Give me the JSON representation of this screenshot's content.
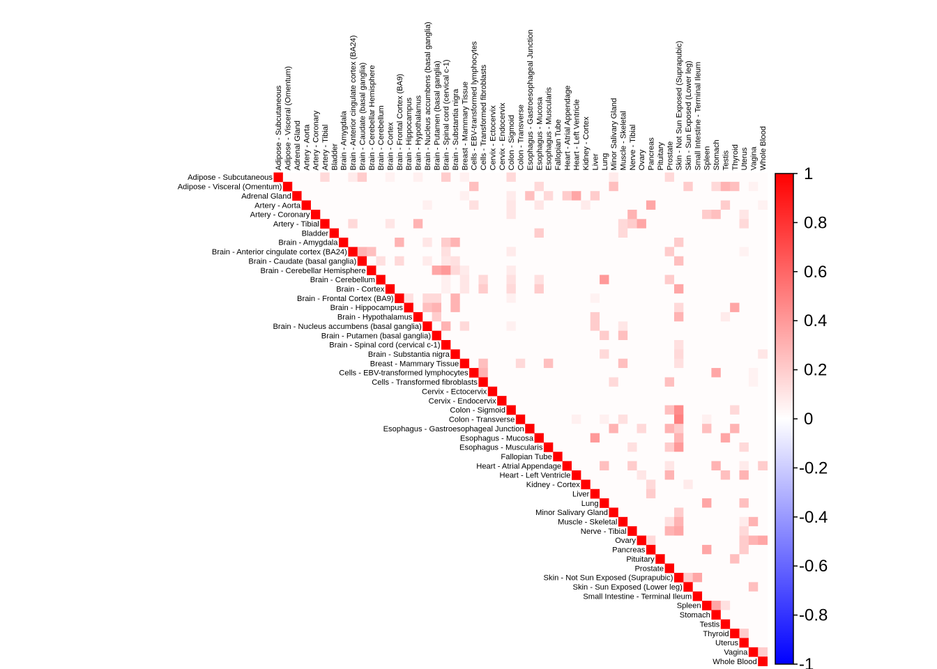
{
  "chart_data": {
    "type": "heatmap",
    "layout": "upper-triangular correlation matrix",
    "title": "",
    "tissues": [
      "Adipose - Subcutaneous",
      "Adipose - Visceral (Omentum)",
      "Adrenal Gland",
      "Artery - Aorta",
      "Artery - Coronary",
      "Artery - Tibial",
      "Bladder",
      "Brain - Amygdala",
      "Brain - Anterior cingulate cortex (BA24)",
      "Brain - Caudate (basal ganglia)",
      "Brain - Cerebellar Hemisphere",
      "Brain - Cerebellum",
      "Brain - Cortex",
      "Brain - Frontal Cortex (BA9)",
      "Brain - Hippocampus",
      "Brain - Hypothalamus",
      "Brain - Nucleus accumbens (basal ganglia)",
      "Brain - Putamen (basal ganglia)",
      "Brain - Spinal cord (cervical c-1)",
      "Brain - Substantia nigra",
      "Breast - Mammary Tissue",
      "Cells - EBV-transformed lymphocytes",
      "Cells - Transformed fibroblasts",
      "Cervix - Ectocervix",
      "Cervix - Endocervix",
      "Colon - Sigmoid",
      "Colon - Transverse",
      "Esophagus - Gastroesophageal Junction",
      "Esophagus - Mucosa",
      "Esophagus - Muscularis",
      "Fallopian Tube",
      "Heart - Atrial Appendage",
      "Heart - Left Ventricle",
      "Kidney - Cortex",
      "Liver",
      "Lung",
      "Minor Salivary Gland",
      "Muscle - Skeletal",
      "Nerve - Tibial",
      "Ovary",
      "Pancreas",
      "Pituitary",
      "Prostate",
      "Skin - Not Sun Exposed (Suprapubic)",
      "Skin - Sun Exposed (Lower leg)",
      "Small Intestine - Terminal Ileum",
      "Spleen",
      "Stomach",
      "Testis",
      "Thyroid",
      "Uterus",
      "Vagina",
      "Whole Blood"
    ],
    "diagonal_value": 1,
    "background_value": 0.01,
    "highlighted_cells": [
      [
        0,
        5,
        0.15
      ],
      [
        0,
        8,
        0.08
      ],
      [
        0,
        9,
        0.2
      ],
      [
        0,
        12,
        0.05
      ],
      [
        0,
        15,
        0.06
      ],
      [
        0,
        18,
        0.2
      ],
      [
        0,
        20,
        0.06
      ],
      [
        0,
        25,
        0.15
      ],
      [
        0,
        42,
        0.15
      ],
      [
        0,
        36,
        0.08
      ],
      [
        1,
        21,
        0.25
      ],
      [
        1,
        28,
        0.15
      ],
      [
        1,
        36,
        0.25
      ],
      [
        1,
        44,
        0.2
      ],
      [
        1,
        47,
        0.15
      ],
      [
        1,
        48,
        0.3
      ],
      [
        1,
        49,
        0.25
      ],
      [
        1,
        51,
        0.05
      ],
      [
        2,
        25,
        0.08
      ],
      [
        2,
        27,
        0.25
      ],
      [
        2,
        29,
        0.15
      ],
      [
        2,
        31,
        0.2
      ],
      [
        2,
        32,
        0.35
      ],
      [
        2,
        34,
        0.2
      ],
      [
        2,
        20,
        0.06
      ],
      [
        3,
        16,
        0.06
      ],
      [
        3,
        21,
        0.12
      ],
      [
        3,
        25,
        0.1
      ],
      [
        3,
        28,
        0.1
      ],
      [
        3,
        33,
        0.08
      ],
      [
        3,
        40,
        0.35
      ],
      [
        3,
        48,
        0.2
      ],
      [
        3,
        52,
        0.05
      ],
      [
        4,
        25,
        0.1
      ],
      [
        4,
        38,
        0.3
      ],
      [
        4,
        46,
        0.2
      ],
      [
        4,
        47,
        0.25
      ],
      [
        4,
        50,
        0.1
      ],
      [
        5,
        8,
        0.15
      ],
      [
        5,
        12,
        0.1
      ],
      [
        5,
        15,
        0.3
      ],
      [
        5,
        37,
        0.15
      ],
      [
        5,
        38,
        0.2
      ],
      [
        5,
        39,
        0.35
      ],
      [
        5,
        50,
        0.15
      ],
      [
        6,
        28,
        0.2
      ],
      [
        6,
        37,
        0.15
      ],
      [
        7,
        13,
        0.3
      ],
      [
        7,
        16,
        0.1
      ],
      [
        7,
        18,
        0.2
      ],
      [
        7,
        19,
        0.3
      ],
      [
        7,
        43,
        0.2
      ],
      [
        8,
        9,
        0.3
      ],
      [
        8,
        10,
        0.25
      ],
      [
        8,
        18,
        0.12
      ],
      [
        8,
        25,
        0.08
      ],
      [
        8,
        42,
        0.2
      ],
      [
        8,
        50,
        0.05
      ],
      [
        9,
        11,
        0.12
      ],
      [
        9,
        13,
        0.15
      ],
      [
        9,
        16,
        0.08
      ],
      [
        9,
        18,
        0.1
      ],
      [
        9,
        19,
        0.12
      ],
      [
        9,
        43,
        0.25
      ],
      [
        10,
        17,
        0.35
      ],
      [
        10,
        18,
        0.4
      ],
      [
        10,
        19,
        0.15
      ],
      [
        10,
        20,
        0.08
      ],
      [
        10,
        25,
        0.08
      ],
      [
        11,
        18,
        0.06
      ],
      [
        11,
        20,
        0.1
      ],
      [
        11,
        22,
        0.15
      ],
      [
        11,
        25,
        0.12
      ],
      [
        11,
        28,
        0.12
      ],
      [
        11,
        35,
        0.4
      ],
      [
        11,
        42,
        0.2
      ],
      [
        12,
        18,
        0.06
      ],
      [
        12,
        20,
        0.1
      ],
      [
        12,
        22,
        0.2
      ],
      [
        12,
        25,
        0.15
      ],
      [
        12,
        28,
        0.2
      ],
      [
        12,
        43,
        0.35
      ],
      [
        13,
        14,
        0.12
      ],
      [
        13,
        16,
        0.15
      ],
      [
        13,
        17,
        0.15
      ],
      [
        13,
        19,
        0.3
      ],
      [
        13,
        25,
        0.06
      ],
      [
        13,
        34,
        0.05
      ],
      [
        14,
        16,
        0.25
      ],
      [
        14,
        17,
        0.3
      ],
      [
        14,
        19,
        0.3
      ],
      [
        14,
        43,
        0.15
      ],
      [
        14,
        49,
        0.35
      ],
      [
        15,
        17,
        0.2
      ],
      [
        15,
        34,
        0.2
      ],
      [
        15,
        43,
        0.3
      ],
      [
        15,
        48,
        0.08
      ],
      [
        16,
        18,
        0.3
      ],
      [
        16,
        20,
        0.15
      ],
      [
        16,
        25,
        0.06
      ],
      [
        16,
        34,
        0.2
      ],
      [
        16,
        37,
        0.1
      ],
      [
        17,
        35,
        0.2
      ],
      [
        17,
        37,
        0.25
      ],
      [
        18,
        43,
        0.12
      ],
      [
        19,
        35,
        0.15
      ],
      [
        19,
        43,
        0.15
      ],
      [
        19,
        52,
        0.1
      ],
      [
        20,
        22,
        0.25
      ],
      [
        20,
        26,
        0.15
      ],
      [
        20,
        29,
        0.25
      ],
      [
        20,
        37,
        0.25
      ],
      [
        20,
        43,
        0.12
      ],
      [
        21,
        22,
        0.3
      ],
      [
        21,
        47,
        0.35
      ],
      [
        21,
        51,
        0.05
      ],
      [
        22,
        36,
        0.15
      ],
      [
        22,
        42,
        0.25
      ],
      [
        22,
        51,
        0.05
      ],
      [
        25,
        42,
        0.25
      ],
      [
        25,
        43,
        0.45
      ],
      [
        25,
        49,
        0.15
      ],
      [
        26,
        32,
        0.06
      ],
      [
        26,
        35,
        0.06
      ],
      [
        26,
        37,
        0.12
      ],
      [
        26,
        43,
        0.5
      ],
      [
        26,
        46,
        0.06
      ],
      [
        27,
        36,
        0.3
      ],
      [
        27,
        39,
        0.15
      ],
      [
        27,
        42,
        0.3
      ],
      [
        27,
        43,
        0.2
      ],
      [
        27,
        46,
        0.25
      ],
      [
        27,
        49,
        0.3
      ],
      [
        28,
        34,
        0.4
      ],
      [
        28,
        43,
        0.3
      ],
      [
        28,
        48,
        0.35
      ],
      [
        29,
        38,
        0.12
      ],
      [
        29,
        42,
        0.2
      ],
      [
        29,
        43,
        0.4
      ],
      [
        29,
        50,
        0.15
      ],
      [
        31,
        35,
        0.25
      ],
      [
        31,
        38,
        0.2
      ],
      [
        31,
        42,
        0.1
      ],
      [
        31,
        47,
        0.3
      ],
      [
        31,
        50,
        0.08
      ],
      [
        31,
        52,
        0.2
      ],
      [
        32,
        39,
        0.1
      ],
      [
        32,
        42,
        0.3
      ],
      [
        32,
        48,
        0.25
      ],
      [
        32,
        50,
        0.3
      ],
      [
        33,
        40,
        0.15
      ],
      [
        33,
        44,
        0.08
      ],
      [
        34,
        40,
        0.2
      ],
      [
        35,
        46,
        0.35
      ],
      [
        35,
        50,
        0.25
      ],
      [
        36,
        43,
        0.2
      ],
      [
        37,
        42,
        0.12
      ],
      [
        37,
        43,
        0.3
      ],
      [
        37,
        50,
        0.08
      ],
      [
        37,
        51,
        0.3
      ],
      [
        38,
        42,
        0.3
      ],
      [
        38,
        43,
        0.35
      ],
      [
        38,
        50,
        0.15
      ],
      [
        39,
        40,
        0.15
      ],
      [
        39,
        51,
        0.3
      ],
      [
        39,
        52,
        0.35
      ],
      [
        39,
        50,
        0.2
      ],
      [
        40,
        46,
        0.35
      ],
      [
        40,
        50,
        0.2
      ],
      [
        41,
        49,
        0.25
      ],
      [
        43,
        44,
        0.2
      ],
      [
        43,
        45,
        0.35
      ],
      [
        44,
        51,
        0.25
      ],
      [
        46,
        47,
        0.35
      ],
      [
        46,
        48,
        0.12
      ],
      [
        49,
        50,
        0.2
      ],
      [
        51,
        52,
        0.2
      ]
    ],
    "colorbar": {
      "colors": [
        "#0000ff",
        "#ffffff",
        "#ff0000"
      ],
      "range": [
        -1,
        1
      ],
      "ticks": [
        "1",
        "0.8",
        "0.6",
        "0.4",
        "0.2",
        "0",
        "-0.2",
        "-0.4",
        "-0.6",
        "-0.8",
        "-1"
      ],
      "tick_values": [
        1,
        0.8,
        0.6,
        0.4,
        0.2,
        0,
        -0.2,
        -0.4,
        -0.6,
        -0.8,
        -1
      ],
      "position": "right"
    }
  }
}
